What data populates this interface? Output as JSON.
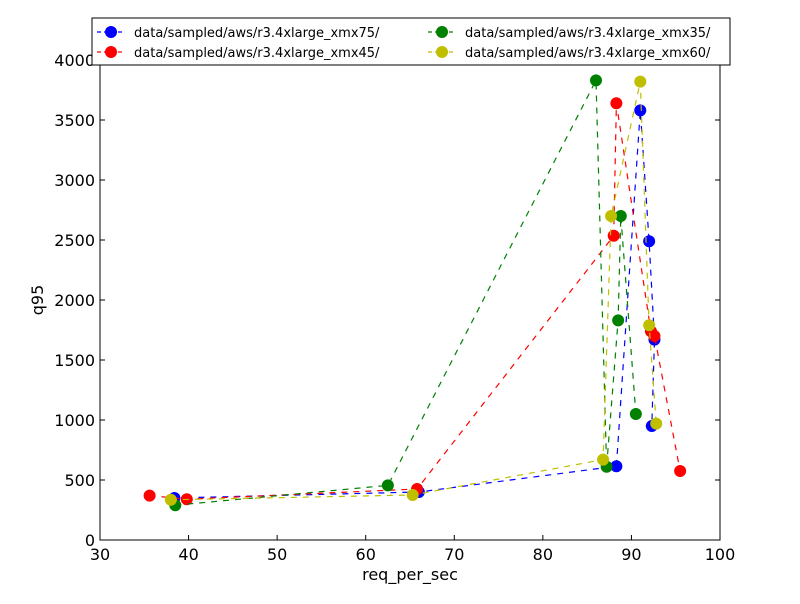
{
  "chart_data": {
    "type": "line",
    "title": "",
    "xlabel": "req_per_sec",
    "ylabel": "q95",
    "xlim": [
      30,
      100
    ],
    "ylim": [
      0,
      4000
    ],
    "xticks": [
      "30",
      "40",
      "50",
      "60",
      "70",
      "80",
      "90",
      "100"
    ],
    "yticks": [
      "0",
      "500",
      "1000",
      "1500",
      "2000",
      "2500",
      "3000",
      "3500",
      "4000"
    ],
    "grid": false,
    "legend_position": "top",
    "series": [
      {
        "name": "data/sampled/aws/r3.4xlarge_xmx75/",
        "color": "#0000ff",
        "x": [
          38.4,
          66.0,
          88.3,
          91.0,
          92.0,
          92.6,
          92.3
        ],
        "y": [
          350,
          400,
          615,
          3580,
          2490,
          1670,
          950
        ]
      },
      {
        "name": "data/sampled/aws/r3.4xlarge_xmx45/",
        "color": "#ff0000",
        "x": [
          35.6,
          39.8,
          65.8,
          88.0,
          88.3,
          92.2,
          92.6,
          95.5
        ],
        "y": [
          370,
          340,
          425,
          2535,
          3640,
          1740,
          1700,
          575
        ]
      },
      {
        "name": "data/sampled/aws/r3.4xlarge_xmx35/",
        "color": "#008000",
        "x": [
          38.5,
          62.5,
          86.0,
          87.2,
          88.5,
          88.8,
          90.5
        ],
        "y": [
          290,
          455,
          3830,
          610,
          1830,
          2700,
          1050
        ]
      },
      {
        "name": "data/sampled/aws/r3.4xlarge_xmx60/",
        "color": "#bfbf00",
        "x": [
          38.0,
          65.3,
          86.8,
          87.7,
          91.0,
          92.0,
          92.8
        ],
        "y": [
          335,
          375,
          670,
          2700,
          3820,
          1790,
          970
        ]
      }
    ]
  }
}
